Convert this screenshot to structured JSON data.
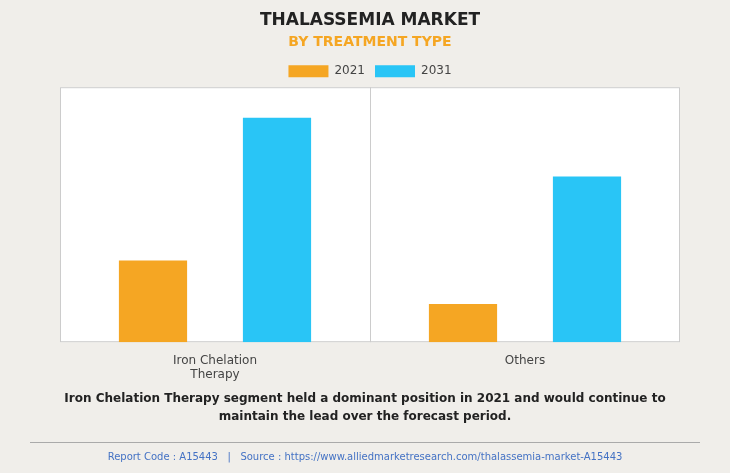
{
  "chart_data": {
    "type": "bar",
    "title": "THALASSEMIA MARKET",
    "subtitle": "BY TREATMENT TYPE",
    "categories": [
      "Iron Chelation\nTherapy",
      "Others"
    ],
    "series": [
      {
        "name": "2021",
        "color": "#F5A623",
        "values": [
          3.2,
          1.5
        ]
      },
      {
        "name": "2031",
        "color": "#29C5F6",
        "values": [
          8.8,
          6.5
        ]
      }
    ],
    "ylim": [
      0,
      10
    ],
    "yticks": [],
    "grid": false,
    "legend": "top",
    "tick_labels": "x",
    "annotations": [
      "Iron Chelation Therapy segment held a dominant position in 2021 and would continue to\nmaintain the lead over the forecast period.",
      "Report Code : A15443   |   Source : https://www.alliedmarketresearch.com/thalassemia-market-A15443"
    ]
  }
}
